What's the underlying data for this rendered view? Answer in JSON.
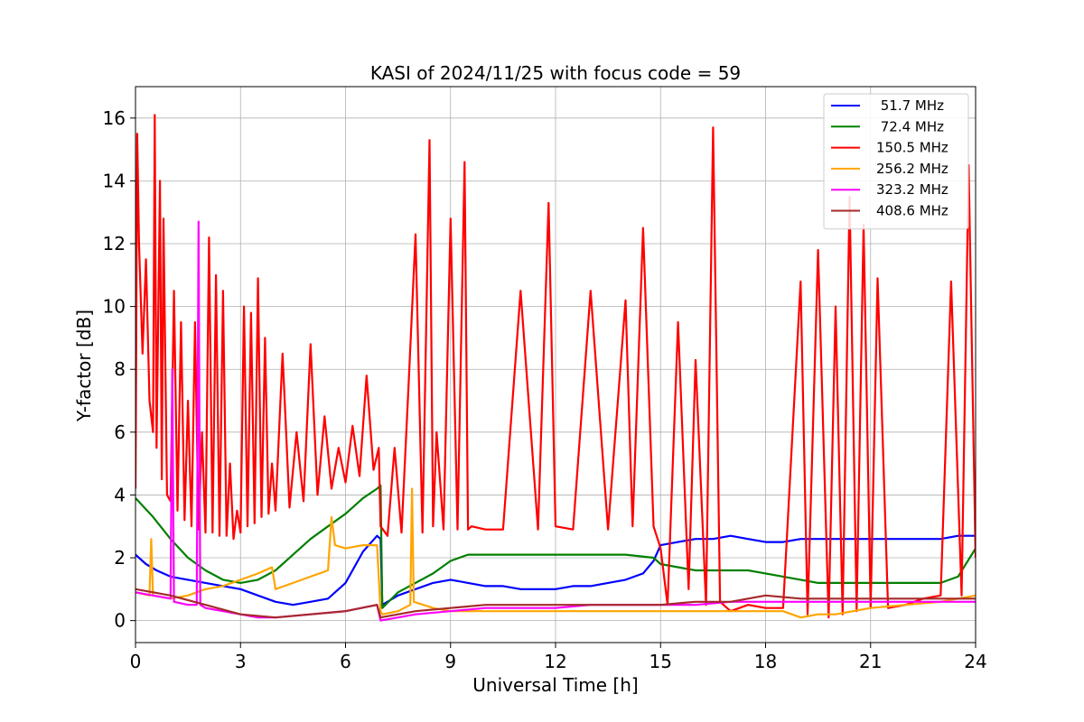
{
  "chart_data": {
    "type": "line",
    "title": "KASI of 2024/11/25 with focus code = 59",
    "xlabel": "Universal Time [h]",
    "ylabel": "Y-factor [dB]",
    "xlim": [
      0,
      24
    ],
    "ylim": [
      -0.7,
      17
    ],
    "xticks": [
      0,
      3,
      6,
      9,
      12,
      15,
      18,
      21,
      24
    ],
    "yticks": [
      0,
      2,
      4,
      6,
      8,
      10,
      12,
      14,
      16
    ],
    "grid": true,
    "legend_position": "top-right",
    "series": [
      {
        "name": " 51.7 MHz",
        "color": "#0000ff",
        "x": [
          0,
          0.3,
          0.6,
          1.0,
          1.5,
          2.0,
          2.5,
          3.0,
          3.5,
          4.0,
          4.5,
          5.0,
          5.5,
          6.0,
          6.5,
          6.9,
          7.0,
          7.05,
          7.5,
          8.0,
          8.5,
          9.0,
          9.5,
          10.0,
          10.5,
          11.0,
          11.5,
          12.0,
          12.5,
          13.0,
          13.5,
          14.0,
          14.5,
          14.8,
          15.0,
          15.5,
          16.0,
          16.5,
          17.0,
          17.5,
          18.0,
          18.5,
          19.0,
          19.5,
          20.0,
          20.5,
          21.0,
          21.5,
          22.0,
          22.5,
          23.0,
          23.5,
          24.0
        ],
        "y": [
          2.1,
          1.8,
          1.6,
          1.4,
          1.3,
          1.2,
          1.1,
          1.0,
          0.8,
          0.6,
          0.5,
          0.6,
          0.7,
          1.2,
          2.2,
          2.7,
          2.6,
          0.5,
          0.8,
          1.0,
          1.2,
          1.3,
          1.2,
          1.1,
          1.1,
          1.0,
          1.0,
          1.0,
          1.1,
          1.1,
          1.2,
          1.3,
          1.5,
          1.9,
          2.4,
          2.5,
          2.6,
          2.6,
          2.7,
          2.6,
          2.5,
          2.5,
          2.6,
          2.6,
          2.6,
          2.6,
          2.6,
          2.6,
          2.6,
          2.6,
          2.6,
          2.7,
          2.7
        ]
      },
      {
        "name": " 72.4 MHz",
        "color": "#008000",
        "x": [
          0,
          0.5,
          1.0,
          1.5,
          2.0,
          2.5,
          3.0,
          3.5,
          4.0,
          4.5,
          5.0,
          5.5,
          6.0,
          6.5,
          6.9,
          7.0,
          7.05,
          7.5,
          8.0,
          8.5,
          9.0,
          9.5,
          10.0,
          11.0,
          12.0,
          13.0,
          14.0,
          14.8,
          15.0,
          15.5,
          16.0,
          16.5,
          17.0,
          17.5,
          18.0,
          18.5,
          19.0,
          19.5,
          20.0,
          20.5,
          21.0,
          21.5,
          22.0,
          22.5,
          23.0,
          23.5,
          24.0
        ],
        "y": [
          3.9,
          3.3,
          2.6,
          2.0,
          1.6,
          1.3,
          1.2,
          1.3,
          1.6,
          2.1,
          2.6,
          3.0,
          3.4,
          3.9,
          4.2,
          4.3,
          0.4,
          0.9,
          1.2,
          1.5,
          1.9,
          2.1,
          2.1,
          2.1,
          2.1,
          2.1,
          2.1,
          2.0,
          1.8,
          1.7,
          1.6,
          1.6,
          1.6,
          1.6,
          1.5,
          1.4,
          1.3,
          1.2,
          1.2,
          1.2,
          1.2,
          1.2,
          1.2,
          1.2,
          1.2,
          1.4,
          2.3
        ]
      },
      {
        "name": "150.5 MHz",
        "color": "#ff0000",
        "x": [
          0,
          0.05,
          0.1,
          0.2,
          0.3,
          0.4,
          0.5,
          0.55,
          0.6,
          0.7,
          0.75,
          0.8,
          0.9,
          1.0,
          1.1,
          1.2,
          1.3,
          1.4,
          1.5,
          1.6,
          1.7,
          1.8,
          1.9,
          2.0,
          2.1,
          2.2,
          2.3,
          2.4,
          2.5,
          2.6,
          2.7,
          2.8,
          2.9,
          3.0,
          3.1,
          3.2,
          3.3,
          3.4,
          3.5,
          3.6,
          3.7,
          3.8,
          3.9,
          4.0,
          4.2,
          4.4,
          4.6,
          4.8,
          5.0,
          5.2,
          5.4,
          5.6,
          5.8,
          6.0,
          6.2,
          6.4,
          6.6,
          6.8,
          6.95,
          7.0,
          7.2,
          7.4,
          7.6,
          7.8,
          8.0,
          8.2,
          8.4,
          8.5,
          8.6,
          8.8,
          9.0,
          9.2,
          9.4,
          9.5,
          9.6,
          10.0,
          10.5,
          11.0,
          11.5,
          11.8,
          12.0,
          12.5,
          13.0,
          13.5,
          14.0,
          14.2,
          14.5,
          14.8,
          15.0,
          15.2,
          15.5,
          15.8,
          16.0,
          16.3,
          16.5,
          16.7,
          17.0,
          17.5,
          18.0,
          18.5,
          19.0,
          19.2,
          19.5,
          19.8,
          20.0,
          20.2,
          20.4,
          20.6,
          20.8,
          21.0,
          21.2,
          21.5,
          22.0,
          22.5,
          23.0,
          23.3,
          23.6,
          23.8,
          24.0
        ],
        "y": [
          4.2,
          15.5,
          12.0,
          8.5,
          11.5,
          7.0,
          6.0,
          16.1,
          5.5,
          14.0,
          4.5,
          12.8,
          4.0,
          3.8,
          10.5,
          3.5,
          9.5,
          3.2,
          7.0,
          3.0,
          9.5,
          2.9,
          6.0,
          2.8,
          12.2,
          2.8,
          11.0,
          2.7,
          10.5,
          2.7,
          5.0,
          2.6,
          3.5,
          2.8,
          10.0,
          3.0,
          9.8,
          3.1,
          10.9,
          3.3,
          9.0,
          3.4,
          5.0,
          3.5,
          8.5,
          3.6,
          6.0,
          3.8,
          8.8,
          4.0,
          6.5,
          4.2,
          5.5,
          4.4,
          6.2,
          4.6,
          7.8,
          4.8,
          5.5,
          3.0,
          2.7,
          5.5,
          2.8,
          7.5,
          12.3,
          2.8,
          15.3,
          3.0,
          6.0,
          2.9,
          12.8,
          2.9,
          14.6,
          2.9,
          3.0,
          2.9,
          2.9,
          10.5,
          2.9,
          13.3,
          3.0,
          2.9,
          10.5,
          2.9,
          10.2,
          3.0,
          12.5,
          3.0,
          2.3,
          0.5,
          9.5,
          1.0,
          8.3,
          0.5,
          15.7,
          0.6,
          0.3,
          0.5,
          0.4,
          0.4,
          10.8,
          0.2,
          11.8,
          0.1,
          10.0,
          0.2,
          13.5,
          0.3,
          12.6,
          0.4,
          10.9,
          0.4,
          0.5,
          0.7,
          0.8,
          10.8,
          0.8,
          14.5,
          2.0
        ]
      },
      {
        "name": "256.2 MHz",
        "color": "#ffa500",
        "x": [
          0,
          0.4,
          0.45,
          0.5,
          1.0,
          1.5,
          2.0,
          2.5,
          3.0,
          3.5,
          3.9,
          4.0,
          4.5,
          5.0,
          5.5,
          5.6,
          5.7,
          6.0,
          6.5,
          6.9,
          7.0,
          7.05,
          7.5,
          7.85,
          7.9,
          7.95,
          8.5,
          9.0,
          10.0,
          11.0,
          12.0,
          13.0,
          14.0,
          15.0,
          16.0,
          17.0,
          18.0,
          18.5,
          19.0,
          19.5,
          20.0,
          20.5,
          21.0,
          22.0,
          23.0,
          24.0
        ],
        "y": [
          0.9,
          0.8,
          2.6,
          0.8,
          0.7,
          0.8,
          1.0,
          1.1,
          1.3,
          1.5,
          1.7,
          1.0,
          1.2,
          1.4,
          1.6,
          3.3,
          2.4,
          2.3,
          2.4,
          2.4,
          0.3,
          0.2,
          0.3,
          0.5,
          4.2,
          0.6,
          0.4,
          0.3,
          0.3,
          0.3,
          0.3,
          0.3,
          0.3,
          0.3,
          0.3,
          0.3,
          0.3,
          0.3,
          0.1,
          0.2,
          0.2,
          0.3,
          0.4,
          0.5,
          0.6,
          0.8
        ]
      },
      {
        "name": "323.2 MHz",
        "color": "#ff00ff",
        "x": [
          0,
          0.5,
          1.0,
          1.05,
          1.1,
          1.5,
          1.75,
          1.8,
          1.85,
          2.0,
          2.5,
          3.0,
          3.5,
          4.0,
          5.0,
          6.0,
          6.9,
          7.0,
          7.5,
          8.0,
          9.0,
          10.0,
          11.0,
          12.0,
          13.0,
          14.0,
          15.0,
          16.0,
          17.0,
          18.0,
          19.0,
          20.0,
          21.0,
          22.0,
          23.0,
          24.0
        ],
        "y": [
          0.9,
          0.8,
          0.7,
          8.0,
          0.6,
          0.5,
          0.5,
          12.7,
          0.5,
          0.4,
          0.3,
          0.2,
          0.1,
          0.1,
          0.2,
          0.3,
          0.5,
          0.0,
          0.1,
          0.2,
          0.3,
          0.4,
          0.4,
          0.4,
          0.5,
          0.5,
          0.5,
          0.5,
          0.6,
          0.6,
          0.6,
          0.6,
          0.6,
          0.6,
          0.6,
          0.6
        ]
      },
      {
        "name": "408.6 MHz",
        "color": "#a52a2a",
        "x": [
          0,
          1.0,
          2.0,
          3.0,
          4.0,
          5.0,
          6.0,
          6.9,
          7.0,
          8.0,
          9.0,
          10.0,
          11.0,
          12.0,
          13.0,
          14.0,
          15.0,
          16.0,
          17.0,
          18.0,
          19.0,
          20.0,
          21.0,
          22.0,
          23.0,
          24.0
        ],
        "y": [
          1.0,
          0.8,
          0.5,
          0.2,
          0.1,
          0.2,
          0.3,
          0.5,
          0.1,
          0.3,
          0.4,
          0.5,
          0.5,
          0.5,
          0.5,
          0.5,
          0.5,
          0.6,
          0.6,
          0.8,
          0.7,
          0.7,
          0.7,
          0.7,
          0.7,
          0.7
        ]
      }
    ]
  }
}
